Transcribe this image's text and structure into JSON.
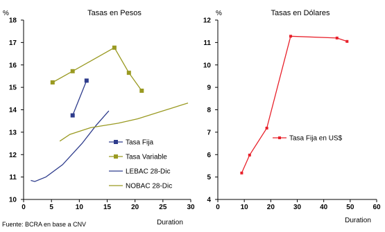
{
  "source": "Fuente: BCRA en base a CNV",
  "chart_data": [
    {
      "type": "line",
      "title": "Tasas en Pesos",
      "ylabel": "%",
      "xlabel": "Duration",
      "xlim": [
        0,
        30
      ],
      "ylim": [
        10,
        18
      ],
      "xticks": [
        "0",
        "5",
        "10",
        "15",
        "20",
        "25",
        "30"
      ],
      "yticks": [
        "10",
        "11",
        "12",
        "13",
        "14",
        "15",
        "16",
        "17",
        "18"
      ],
      "legend_position": "lower-right",
      "series": [
        {
          "name": "Tasa Fija",
          "color": "#2e3c8c",
          "marker": "square",
          "points": [
            [
              8.8,
              13.75
            ],
            [
              11.3,
              15.3
            ]
          ]
        },
        {
          "name": "Tasa Variable",
          "color": "#9a9a22",
          "marker": "square",
          "points": [
            [
              5.2,
              15.22
            ],
            [
              8.8,
              15.72
            ],
            [
              16.3,
              16.77
            ],
            [
              18.9,
              15.65
            ],
            [
              21.2,
              14.85
            ]
          ]
        },
        {
          "name": "LEBAC 28-Dic",
          "color": "#2e3c8c",
          "marker": "none",
          "points": [
            [
              1.3,
              10.85
            ],
            [
              2.0,
              10.8
            ],
            [
              4.0,
              11.0
            ],
            [
              7.0,
              11.55
            ],
            [
              10.5,
              12.5
            ],
            [
              13.0,
              13.3
            ],
            [
              15.3,
              13.95
            ]
          ]
        },
        {
          "name": "NOBAC 28-Dic",
          "color": "#9a9a22",
          "marker": "none",
          "points": [
            [
              6.5,
              12.6
            ],
            [
              8.3,
              12.9
            ],
            [
              12.0,
              13.2
            ],
            [
              17.0,
              13.4
            ],
            [
              20.5,
              13.6
            ],
            [
              25.0,
              13.95
            ],
            [
              29.5,
              14.3
            ]
          ]
        }
      ]
    },
    {
      "type": "line",
      "title": "Tasas en Dólares",
      "ylabel": "%",
      "xlabel": "Duration",
      "xlim": [
        0,
        60
      ],
      "ylim": [
        4,
        12
      ],
      "xticks": [
        "0",
        "10",
        "20",
        "30",
        "40",
        "50",
        "60"
      ],
      "yticks": [
        "4",
        "5",
        "6",
        "7",
        "8",
        "9",
        "10",
        "11",
        "12"
      ],
      "legend_position": "center-right",
      "series": [
        {
          "name": "Tasa Fija en US$",
          "color": "#e8202a",
          "marker": "square",
          "points": [
            [
              9.0,
              5.18
            ],
            [
              12.0,
              5.98
            ],
            [
              18.5,
              7.18
            ],
            [
              27.5,
              11.28
            ],
            [
              45.0,
              11.2
            ],
            [
              48.8,
              11.05
            ]
          ]
        }
      ]
    }
  ]
}
